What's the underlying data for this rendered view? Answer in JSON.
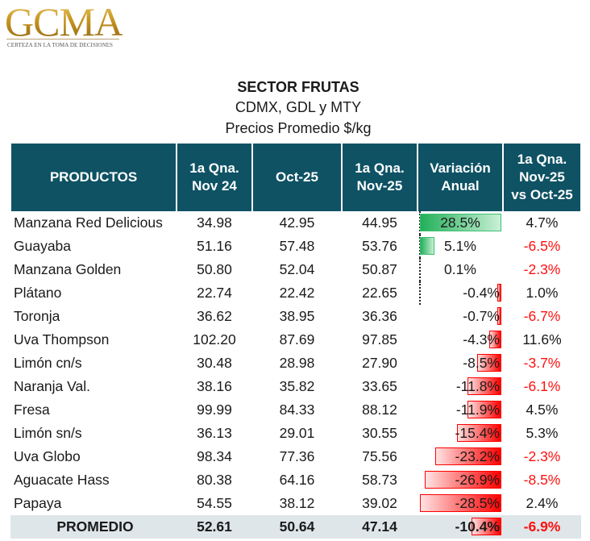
{
  "logo": {
    "name": "GCMA",
    "tagline": "CERTEZA EN LA TOMA DE DECISIONES"
  },
  "titles": {
    "title": "SECTOR FRUTAS",
    "subtitle": "CDMX, GDL y MTY",
    "unit": "Precios Promedio $/kg"
  },
  "colors": {
    "header_bg": "#0e5264",
    "positive_bar": "#22b05a",
    "negative_bar": "#ff0000",
    "negative_text": "#ff1010",
    "average_row_bg": "#dfe6e9"
  },
  "table": {
    "headers": [
      "PRODUCTOS",
      "1a Qna. Nov 24",
      "Oct-25",
      "1a Qna. Nov-25",
      "Variación Anual",
      "1a Qna. Nov-25 vs Oct-25"
    ],
    "header_lines": [
      [
        "PRODUCTOS"
      ],
      [
        "1a Qna.",
        "Nov 24"
      ],
      [
        "Oct-25"
      ],
      [
        "1a Qna.",
        "Nov-25"
      ],
      [
        "Variación",
        "Anual"
      ],
      [
        "1a Qna.",
        "Nov-25",
        "vs Oct-25"
      ]
    ],
    "rows": [
      {
        "product": "Manzana Red Delicious",
        "nov24": "34.98",
        "oct25": "42.95",
        "nov25": "44.95",
        "var_anual": "28.5%",
        "var_anual_value": 28.5,
        "var_mensual": "4.7%",
        "var_mensual_value": 4.7
      },
      {
        "product": "Guayaba",
        "nov24": "51.16",
        "oct25": "57.48",
        "nov25": "53.76",
        "var_anual": "5.1%",
        "var_anual_value": 5.1,
        "var_mensual": "-6.5%",
        "var_mensual_value": -6.5
      },
      {
        "product": "Manzana Golden",
        "nov24": "50.80",
        "oct25": "52.04",
        "nov25": "50.87",
        "var_anual": "0.1%",
        "var_anual_value": 0.1,
        "var_mensual": "-2.3%",
        "var_mensual_value": -2.3
      },
      {
        "product": "Plátano",
        "nov24": "22.74",
        "oct25": "22.42",
        "nov25": "22.65",
        "var_anual": "-0.4%",
        "var_anual_value": -0.4,
        "var_mensual": "1.0%",
        "var_mensual_value": 1.0
      },
      {
        "product": "Toronja",
        "nov24": "36.62",
        "oct25": "38.95",
        "nov25": "36.36",
        "var_anual": "-0.7%",
        "var_anual_value": -0.7,
        "var_mensual": "-6.7%",
        "var_mensual_value": -6.7
      },
      {
        "product": "Uva Thompson",
        "nov24": "102.20",
        "oct25": "87.69",
        "nov25": "97.85",
        "var_anual": "-4.3%",
        "var_anual_value": -4.3,
        "var_mensual": "11.6%",
        "var_mensual_value": 11.6
      },
      {
        "product": "Limón cn/s",
        "nov24": "30.48",
        "oct25": "28.98",
        "nov25": "27.90",
        "var_anual": "-8.5%",
        "var_anual_value": -8.5,
        "var_mensual": "-3.7%",
        "var_mensual_value": -3.7
      },
      {
        "product": "Naranja Val.",
        "nov24": "38.16",
        "oct25": "35.82",
        "nov25": "33.65",
        "var_anual": "-11.8%",
        "var_anual_value": -11.8,
        "var_mensual": "-6.1%",
        "var_mensual_value": -6.1
      },
      {
        "product": "Fresa",
        "nov24": "99.99",
        "oct25": "84.33",
        "nov25": "88.12",
        "var_anual": "-11.9%",
        "var_anual_value": -11.9,
        "var_mensual": "4.5%",
        "var_mensual_value": 4.5
      },
      {
        "product": "Limón sn/s",
        "nov24": "36.13",
        "oct25": "29.01",
        "nov25": "30.55",
        "var_anual": "-15.4%",
        "var_anual_value": -15.4,
        "var_mensual": "5.3%",
        "var_mensual_value": 5.3
      },
      {
        "product": "Uva Globo",
        "nov24": "98.34",
        "oct25": "77.36",
        "nov25": "75.56",
        "var_anual": "-23.2%",
        "var_anual_value": -23.2,
        "var_mensual": "-2.3%",
        "var_mensual_value": -2.3
      },
      {
        "product": "Aguacate Hass",
        "nov24": "80.38",
        "oct25": "64.16",
        "nov25": "58.73",
        "var_anual": "-26.9%",
        "var_anual_value": -26.9,
        "var_mensual": "-8.5%",
        "var_mensual_value": -8.5
      },
      {
        "product": "Papaya",
        "nov24": "54.55",
        "oct25": "38.12",
        "nov25": "39.02",
        "var_anual": "-28.5%",
        "var_anual_value": -28.5,
        "var_mensual": "2.4%",
        "var_mensual_value": 2.4
      }
    ],
    "average": {
      "product": "PROMEDIO",
      "nov24": "52.61",
      "oct25": "50.64",
      "nov25": "47.14",
      "var_anual": "-10.4%",
      "var_anual_value": -10.4,
      "var_mensual": "-6.9%",
      "var_mensual_value": -6.9
    }
  }
}
